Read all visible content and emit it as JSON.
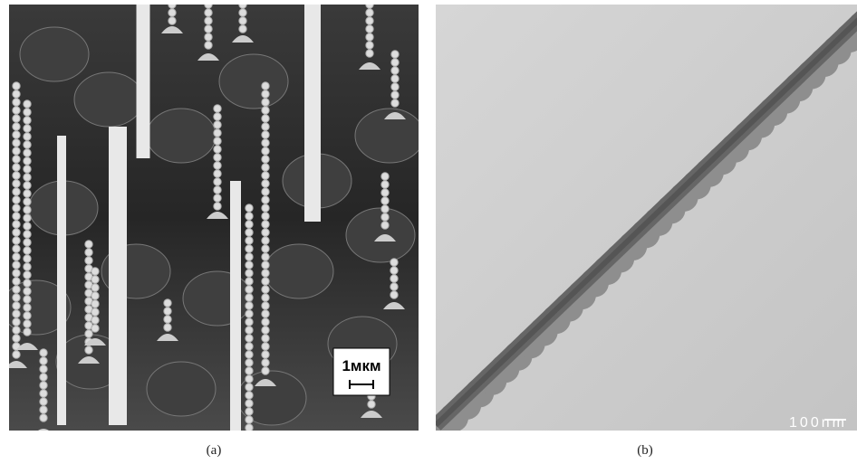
{
  "panels": [
    {
      "label": "(a)",
      "scale_bar": "1мкм"
    },
    {
      "label": "(b)",
      "scale_bar": "100nm"
    }
  ]
}
